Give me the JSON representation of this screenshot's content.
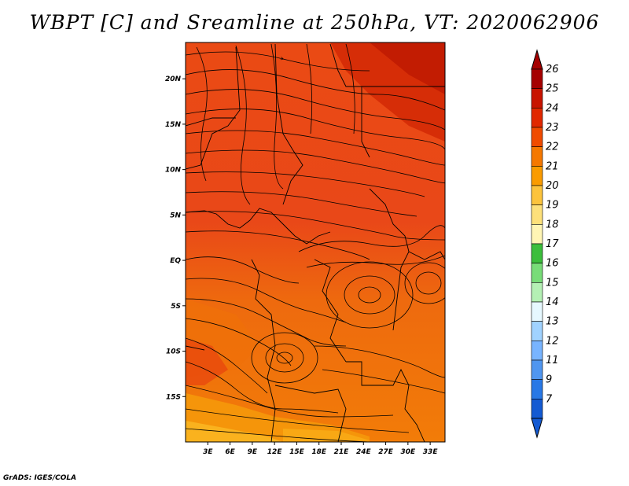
{
  "title": "WBPT [C] and Sreamline at 250hPa, VT: 2020062906",
  "credit": "GrADS: IGES/COLA",
  "map": {
    "lon_range": [
      0,
      35
    ],
    "lat_range": [
      -20,
      24
    ],
    "lon_ticks": [
      {
        "value": 3,
        "label": "3E"
      },
      {
        "value": 6,
        "label": "6E"
      },
      {
        "value": 9,
        "label": "9E"
      },
      {
        "value": 12,
        "label": "12E"
      },
      {
        "value": 15,
        "label": "15E"
      },
      {
        "value": 18,
        "label": "18E"
      },
      {
        "value": 21,
        "label": "21E"
      },
      {
        "value": 24,
        "label": "24E"
      },
      {
        "value": 27,
        "label": "27E"
      },
      {
        "value": 30,
        "label": "30E"
      },
      {
        "value": 33,
        "label": "33E"
      }
    ],
    "lat_ticks": [
      {
        "value": 20,
        "label": "20N"
      },
      {
        "value": 15,
        "label": "15N"
      },
      {
        "value": 10,
        "label": "10N"
      },
      {
        "value": 5,
        "label": "5N"
      },
      {
        "value": 0,
        "label": "EQ"
      },
      {
        "value": -5,
        "label": "5S"
      },
      {
        "value": -10,
        "label": "10S"
      },
      {
        "value": -15,
        "label": "15S"
      }
    ]
  },
  "colorbar": {
    "labels": [
      "26",
      "25",
      "24",
      "23",
      "22",
      "21",
      "20",
      "19",
      "18",
      "17",
      "16",
      "15",
      "14",
      "13",
      "12",
      "11",
      "9",
      "7"
    ],
    "colors": [
      "#a50000",
      "#c81400",
      "#e12800",
      "#f04b00",
      "#f57800",
      "#fa9b00",
      "#fcc33c",
      "#fde07a",
      "#fff5b4",
      "#3cbe3c",
      "#78dc78",
      "#b4f0b4",
      "#e6f8ff",
      "#a0d2ff",
      "#78b4ff",
      "#5096f0",
      "#2878e6",
      "#145ad2"
    ]
  }
}
